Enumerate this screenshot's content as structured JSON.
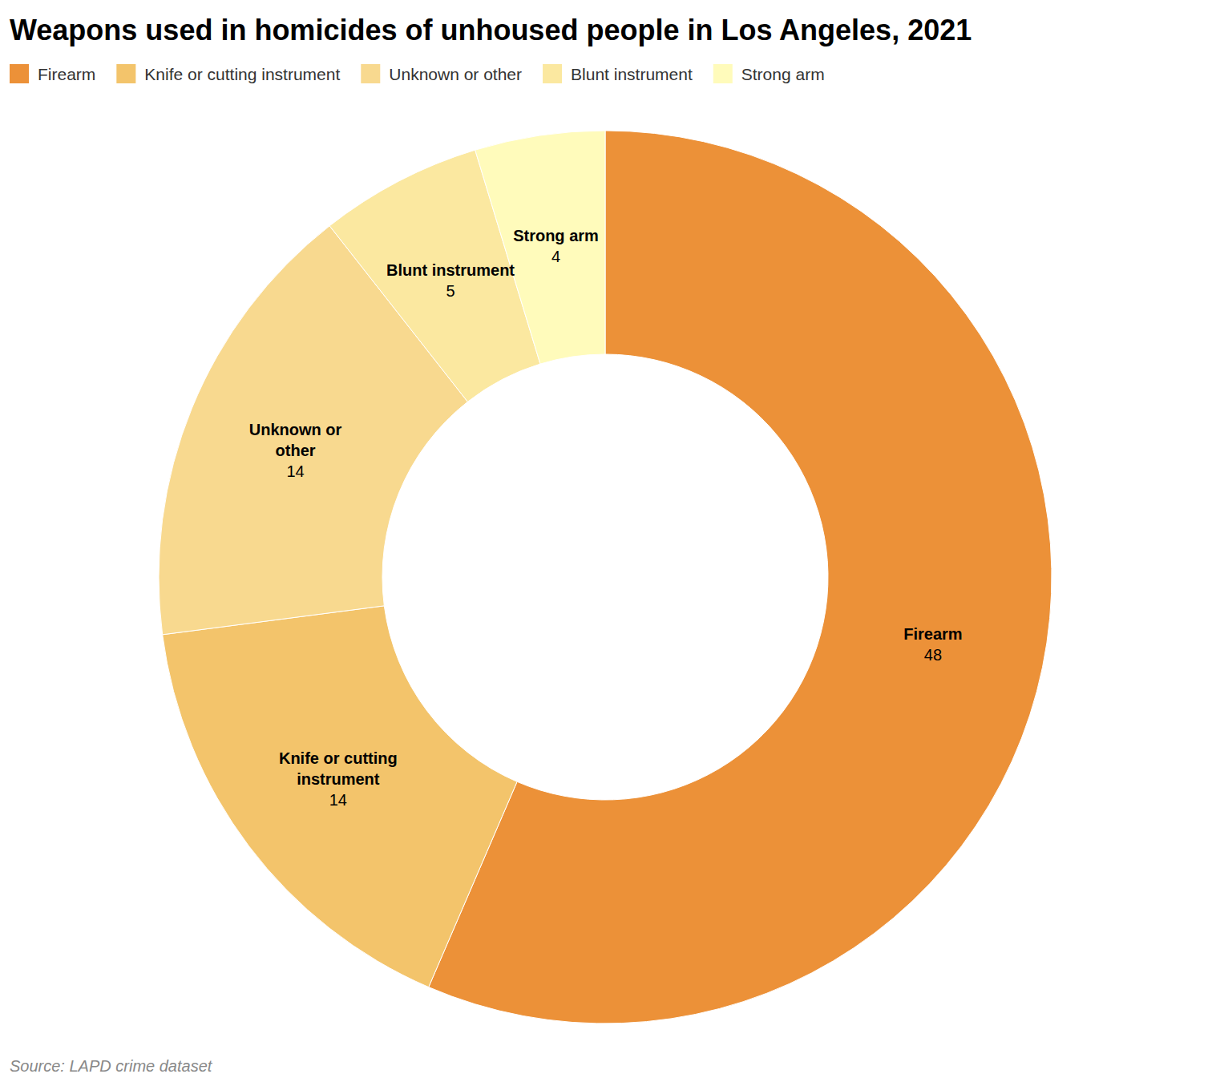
{
  "chart_data": {
    "type": "pie",
    "title": "Weapons used in homicides of unhoused people in Los Angeles, 2021",
    "source": "Source: LAPD crime dataset",
    "categories": [
      "Firearm",
      "Knife or cutting instrument",
      "Unknown or other",
      "Blunt instrument",
      "Strong arm"
    ],
    "values": [
      48,
      14,
      14,
      5,
      4
    ],
    "colors": [
      "#ec9138",
      "#f3c46b",
      "#f8d98f",
      "#fbe8a0",
      "#fffbbb"
    ],
    "legend": "top",
    "data_labels": true
  }
}
